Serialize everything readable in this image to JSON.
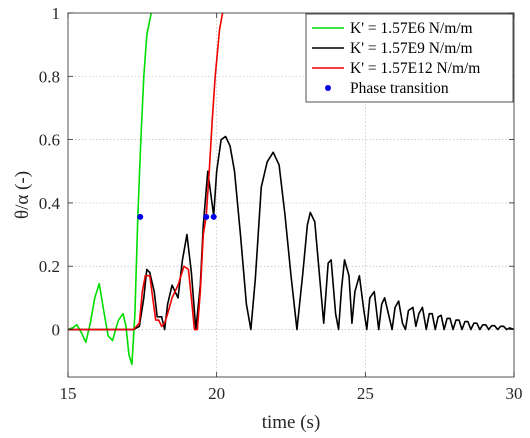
{
  "chart_data": {
    "type": "line",
    "title": "",
    "xlabel": "time (s)",
    "ylabel": "θ/α (-)",
    "xlim": [
      15,
      30
    ],
    "ylim": [
      -0.15,
      1.0
    ],
    "xticks": [
      15,
      20,
      25,
      30
    ],
    "yticks": [
      0,
      0.2,
      0.4,
      0.6,
      0.8,
      1
    ],
    "xtick_labels": [
      "15",
      "20",
      "25",
      "30"
    ],
    "ytick_labels": [
      "0",
      "0.2",
      "0.4",
      "0.6",
      "0.8",
      "1"
    ],
    "grid": true,
    "grid_style": "dotted",
    "legend_position": "top-right",
    "series": [
      {
        "name": "K' = 1.57E6 N/m/m",
        "color": "#00dd00",
        "x": [
          15.0,
          15.15,
          15.3,
          15.45,
          15.6,
          15.75,
          15.9,
          16.05,
          16.2,
          16.35,
          16.5,
          16.6,
          16.7,
          16.85,
          16.95,
          17.05,
          17.15,
          17.25,
          17.35,
          17.45,
          17.55,
          17.65,
          17.8
        ],
        "y": [
          0.0,
          0.005,
          0.015,
          -0.01,
          -0.04,
          0.02,
          0.1,
          0.145,
          0.06,
          -0.02,
          -0.035,
          0.0,
          0.03,
          0.05,
          0.01,
          -0.08,
          -0.11,
          0.05,
          0.36,
          0.6,
          0.8,
          0.93,
          1.0
        ]
      },
      {
        "name": "K' = 1.57E9 N/m/m",
        "color": "#000000",
        "x": [
          15.0,
          16.5,
          17.2,
          17.4,
          17.55,
          17.65,
          17.75,
          17.9,
          18.0,
          18.15,
          18.25,
          18.35,
          18.5,
          18.7,
          18.85,
          19.0,
          19.15,
          19.3,
          19.45,
          19.55,
          19.7,
          19.9,
          20.0,
          20.15,
          20.3,
          20.45,
          20.6,
          20.8,
          21.0,
          21.15,
          21.3,
          21.5,
          21.7,
          21.9,
          22.1,
          22.3,
          22.5,
          22.7,
          22.9,
          23.05,
          23.15,
          23.3,
          23.45,
          23.6,
          23.75,
          23.85,
          24.0,
          24.1,
          24.2,
          24.3,
          24.45,
          24.55,
          24.65,
          24.8,
          24.95,
          25.05,
          25.15,
          25.3,
          25.45,
          25.55,
          25.65,
          25.8,
          25.9,
          26.0,
          26.12,
          26.25,
          26.35,
          26.45,
          26.6,
          26.7,
          26.8,
          26.92,
          27.05,
          27.15,
          27.25,
          27.35,
          27.45,
          27.55,
          27.65,
          27.75,
          27.85,
          27.95,
          28.05,
          28.15,
          28.25,
          28.35,
          28.45,
          28.55,
          28.65,
          28.75,
          28.85,
          28.95,
          29.05,
          29.15,
          29.25,
          29.35,
          29.45,
          29.55,
          29.65,
          29.75,
          29.85,
          30.0
        ],
        "y": [
          0.0,
          0.0,
          0.0,
          0.01,
          0.1,
          0.19,
          0.18,
          0.12,
          0.04,
          0.04,
          0.0,
          0.08,
          0.14,
          0.1,
          0.22,
          0.3,
          0.18,
          0.0,
          0.14,
          0.33,
          0.5,
          0.36,
          0.5,
          0.6,
          0.61,
          0.58,
          0.5,
          0.3,
          0.08,
          0.0,
          0.16,
          0.45,
          0.53,
          0.56,
          0.52,
          0.36,
          0.17,
          0.0,
          0.18,
          0.33,
          0.37,
          0.34,
          0.18,
          0.02,
          0.21,
          0.22,
          0.05,
          0.0,
          0.13,
          0.22,
          0.17,
          0.02,
          0.12,
          0.17,
          0.06,
          0.0,
          0.1,
          0.12,
          0.0,
          0.08,
          0.1,
          0.04,
          0.0,
          0.07,
          0.09,
          0.02,
          0.0,
          0.06,
          0.07,
          0.01,
          0.05,
          0.07,
          0.0,
          0.05,
          0.05,
          0.0,
          0.04,
          0.045,
          0.0,
          0.035,
          0.035,
          0.0,
          0.03,
          0.03,
          0.0,
          0.025,
          0.025,
          0.0,
          0.02,
          0.02,
          0.0,
          0.015,
          0.015,
          0.0,
          0.012,
          0.012,
          0.0,
          0.01,
          0.01,
          0.0,
          0.005,
          0.0
        ]
      },
      {
        "name": "K' = 1.57E12 N/m/m",
        "color": "#ee0000",
        "x": [
          15.0,
          16.5,
          17.2,
          17.4,
          17.5,
          17.6,
          17.75,
          17.85,
          17.95,
          18.05,
          18.15,
          18.25,
          18.35,
          18.5,
          18.7,
          18.9,
          19.05,
          19.15,
          19.25,
          19.35,
          19.45,
          19.55,
          19.65,
          19.75,
          19.85,
          19.95,
          20.1,
          20.2
        ],
        "y": [
          0.0,
          0.0,
          0.0,
          0.02,
          0.12,
          0.17,
          0.17,
          0.1,
          0.03,
          0.03,
          0.01,
          0.02,
          0.05,
          0.1,
          0.14,
          0.2,
          0.19,
          0.1,
          0.0,
          0.0,
          0.12,
          0.3,
          0.36,
          0.5,
          0.66,
          0.8,
          0.95,
          1.0
        ]
      },
      {
        "name": "Phase transition",
        "color": "#0000ee",
        "marker": "dot",
        "x": [
          17.43,
          19.65,
          19.9
        ],
        "y": [
          0.356,
          0.356,
          0.356
        ]
      }
    ]
  }
}
